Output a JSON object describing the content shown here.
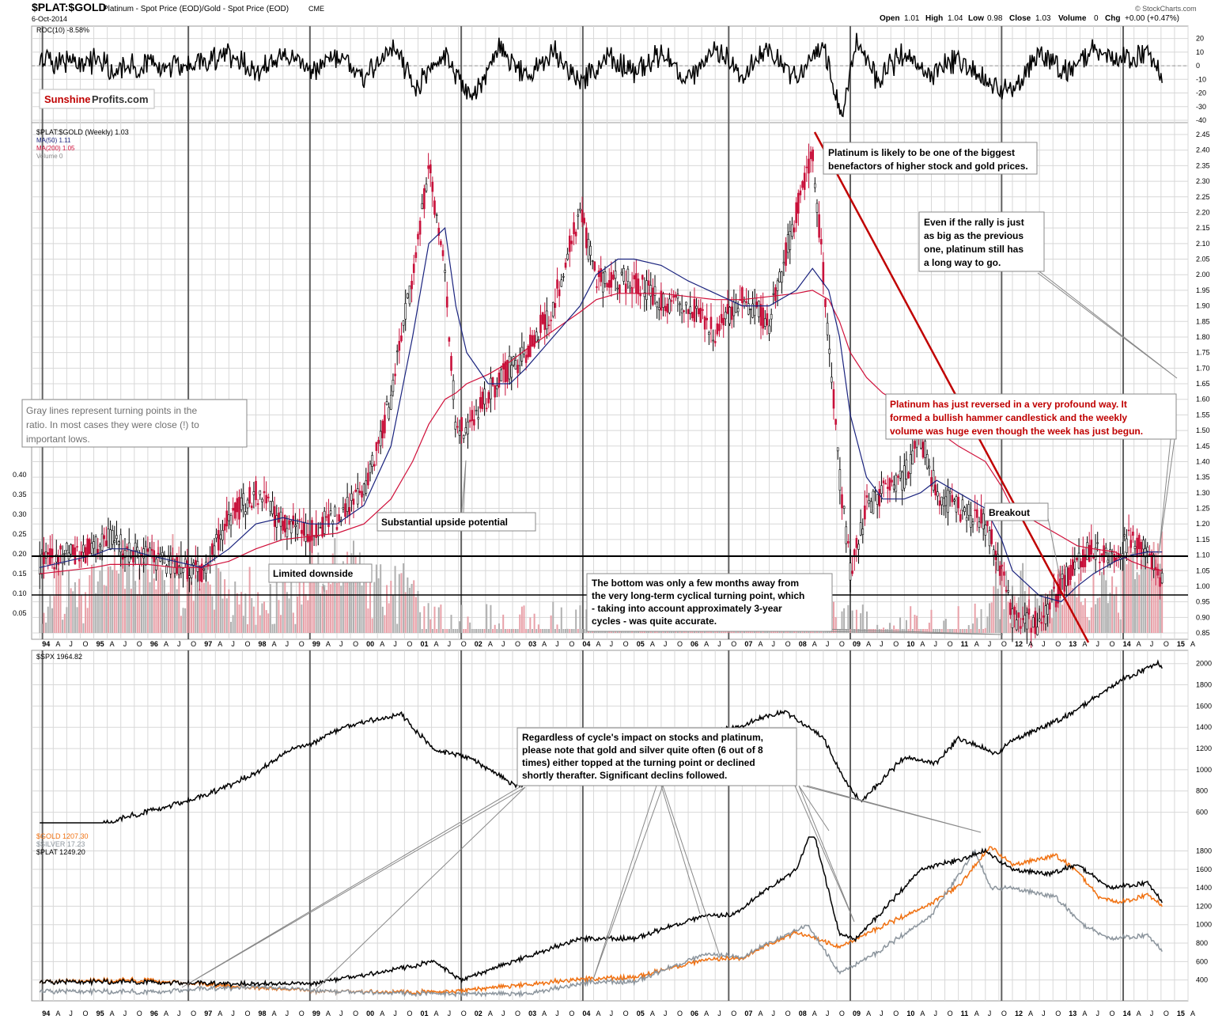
{
  "header": {
    "symbol": "$PLAT:$GOLD",
    "description": "Platinum  - Spot Price (EOD)/Gold - Spot Price (EOD)",
    "exchange": "CME",
    "date": "6-Oct-2014",
    "watermark": "© StockCharts.com",
    "ohlc": {
      "open_label": "Open",
      "open": "1.01",
      "high_label": "High",
      "high": "1.04",
      "low_label": "Low",
      "low": "0.98",
      "close_label": "Close",
      "close": "1.03",
      "volume_label": "Volume",
      "volume": "0",
      "chg_label": "Chg",
      "chg": "+0.00 (+0.47%)"
    }
  },
  "logo": {
    "part1": "Sunshine",
    "part2": "Profits.com"
  },
  "panels": {
    "roc": {
      "legend": "ROC(10) -8.58%"
    },
    "ratio": {
      "legend": "$PLAT:$GOLD (Weekly) 1.03",
      "ma50": "MA(50) 1.11",
      "ma200": "MA(200) 1.05",
      "volume": "Volume 0"
    },
    "spx": {
      "legend": "$SPX 1964.82"
    },
    "metals": {
      "gold": "$GOLD 1207.30",
      "silver": "$SILVER 17.23",
      "plat": "$PLAT 1249.20"
    }
  },
  "annotations": {
    "biggest_benefactors": [
      "Platinum is likely to be one of the biggest",
      "benefactors of higher stock and gold prices."
    ],
    "rally": [
      "Even if the rally is just",
      "as big as the previous",
      "one, platinum still has",
      "a long way to go."
    ],
    "reversed": [
      "Platinum has just reversed in a very profound way. It",
      "formed a bullish hammer candlestick and the weekly",
      "volume was huge even though the week has just begun."
    ],
    "gray_lines": [
      "Gray lines represent turning points in the",
      "ratio. In most cases they were close (!) to",
      "important lows."
    ],
    "substantial": "Substantial upside potential",
    "limited": "Limited downside",
    "breakout": "Breakout",
    "bottom": [
      "The bottom was only a few months away from",
      "the very long-term cyclical turning point, which",
      "- taking into account approximately 3-year",
      "cycles - was quite accurate."
    ],
    "regardless": [
      "Regardless of cycle's impact on stocks and platinum,",
      "please note that gold and silver quite often (6 out of 8",
      "times) either topped at the turning point or declined",
      "shortly therafter. Significant declins followed."
    ]
  },
  "colors": {
    "ma50": "#1a237e",
    "ma200": "#d0103a",
    "gold": "#f07010",
    "silver": "#8c959d",
    "plat": "#000000",
    "grid": "#d8d8d8",
    "turning": "#606060",
    "trend": "#c00000",
    "vol_up": "#b0b0b0",
    "vol_down": "#e8a0a8"
  },
  "x_axis": {
    "labels": [
      "94",
      "A",
      "J",
      "O",
      "95",
      "A",
      "J",
      "O",
      "96",
      "A",
      "J",
      "O",
      "97",
      "A",
      "J",
      "O",
      "98",
      "A",
      "J",
      "O",
      "99",
      "A",
      "J",
      "O",
      "00",
      "A",
      "J",
      "O",
      "01",
      "A",
      "J",
      "O",
      "02",
      "A",
      "J",
      "O",
      "03",
      "A",
      "J",
      "O",
      "04",
      "A",
      "J",
      "O",
      "05",
      "A",
      "J",
      "O",
      "06",
      "A",
      "J",
      "O",
      "07",
      "A",
      "J",
      "O",
      "08",
      "A",
      "J",
      "O",
      "09",
      "A",
      "J",
      "O",
      "10",
      "A",
      "J",
      "O",
      "11",
      "A",
      "J",
      "O",
      "12",
      "A",
      "J",
      "O",
      "13",
      "A",
      "J",
      "O",
      "14",
      "A",
      "J",
      "O",
      "15",
      "A"
    ]
  },
  "chart_data": [
    {
      "type": "line",
      "title": "ROC(10) -8.58%",
      "ylim": [
        -40,
        25
      ],
      "y_ticks": [
        "20",
        "10",
        "0",
        "-10",
        "-20",
        "-30",
        "-40"
      ],
      "x": [
        1994.0,
        1994.5,
        1995.0,
        1995.5,
        1996.0,
        1996.5,
        1997.0,
        1997.5,
        1998.0,
        1998.5,
        1999.0,
        1999.5,
        2000.0,
        2000.5,
        2001.0,
        2001.5,
        2002.0,
        2002.5,
        2003.0,
        2003.5,
        2004.0,
        2004.5,
        2005.0,
        2005.5,
        2006.0,
        2006.5,
        2007.0,
        2007.5,
        2008.0,
        2008.5,
        2008.85,
        2009.1,
        2009.5,
        2010.0,
        2010.5,
        2011.0,
        2011.5,
        2012.0,
        2012.5,
        2013.0,
        2013.5,
        2014.0,
        2014.5,
        2014.77
      ],
      "values": [
        5,
        2,
        3,
        -4,
        2,
        0,
        -1,
        10,
        -5,
        8,
        -3,
        6,
        -10,
        14,
        -15,
        8,
        -25,
        12,
        -8,
        10,
        -12,
        6,
        -4,
        8,
        -10,
        12,
        -6,
        9,
        -8,
        14,
        -38,
        20,
        -10,
        10,
        -8,
        6,
        -12,
        -18,
        10,
        -6,
        12,
        4,
        8,
        -8.58
      ]
    },
    {
      "type": "candlestick",
      "title": "$PLAT:$GOLD (Weekly) 1.03",
      "ylim": [
        0.85,
        2.45
      ],
      "y_ticks": [
        "2.45",
        "2.40",
        "2.35",
        "2.30",
        "2.25",
        "2.20",
        "2.15",
        "2.10",
        "2.05",
        "2.00",
        "1.95",
        "1.90",
        "1.85",
        "1.80",
        "1.75",
        "1.70",
        "1.65",
        "1.60",
        "1.55",
        "1.50",
        "1.45",
        "1.40",
        "1.35",
        "1.30",
        "1.25",
        "1.20",
        "1.15",
        "1.10",
        "1.05",
        "1.00",
        "0.95",
        "0.90",
        "0.85"
      ],
      "volume_ticks": [
        "0.40",
        "0.35",
        "0.30",
        "0.25",
        "0.20",
        "0.15",
        "0.10",
        "0.05"
      ],
      "x": [
        1994.0,
        1994.5,
        1995.0,
        1995.3,
        1995.6,
        1996.0,
        1996.5,
        1997.0,
        1997.5,
        1998.0,
        1998.5,
        1999.0,
        1999.5,
        2000.0,
        2000.5,
        2000.9,
        2001.2,
        2001.5,
        2001.7,
        2001.9,
        2002.3,
        2002.7,
        2003.0,
        2003.5,
        2004.0,
        2004.3,
        2004.7,
        2005.0,
        2005.5,
        2006.0,
        2006.5,
        2007.0,
        2007.5,
        2008.0,
        2008.3,
        2008.6,
        2008.8,
        2009.0,
        2009.3,
        2009.6,
        2010.0,
        2010.3,
        2010.6,
        2011.0,
        2011.5,
        2011.8,
        2012.0,
        2012.5,
        2012.9,
        2013.2,
        2013.5,
        2013.9,
        2014.2,
        2014.5,
        2014.77
      ],
      "values": [
        1.07,
        1.1,
        1.12,
        1.15,
        1.12,
        1.1,
        1.06,
        1.05,
        1.22,
        1.3,
        1.2,
        1.18,
        1.22,
        1.3,
        1.6,
        2.0,
        2.35,
        2.0,
        1.52,
        1.5,
        1.62,
        1.7,
        1.75,
        1.9,
        2.2,
        1.98,
        1.98,
        1.98,
        1.92,
        1.9,
        1.82,
        1.92,
        1.85,
        2.2,
        2.4,
        1.8,
        1.35,
        1.05,
        1.25,
        1.3,
        1.35,
        1.48,
        1.3,
        1.25,
        1.2,
        1.05,
        0.9,
        0.88,
        1.0,
        1.08,
        1.12,
        1.1,
        1.15,
        1.1,
        1.02
      ],
      "ma50": [
        1.06,
        1.08,
        1.1,
        1.12,
        1.12,
        1.1,
        1.08,
        1.06,
        1.12,
        1.2,
        1.22,
        1.2,
        1.2,
        1.26,
        1.45,
        1.8,
        2.1,
        2.15,
        1.9,
        1.75,
        1.65,
        1.65,
        1.7,
        1.8,
        1.9,
        2.0,
        2.05,
        2.05,
        2.03,
        1.98,
        1.94,
        1.9,
        1.9,
        1.95,
        2.02,
        1.95,
        1.8,
        1.55,
        1.35,
        1.28,
        1.28,
        1.3,
        1.34,
        1.3,
        1.25,
        1.15,
        1.05,
        0.97,
        0.95,
        1.0,
        1.04,
        1.08,
        1.1,
        1.11,
        1.11
      ],
      "ma200": [
        1.04,
        1.05,
        1.06,
        1.07,
        1.07,
        1.07,
        1.06,
        1.06,
        1.08,
        1.12,
        1.15,
        1.16,
        1.17,
        1.2,
        1.28,
        1.4,
        1.52,
        1.6,
        1.62,
        1.65,
        1.68,
        1.72,
        1.76,
        1.82,
        1.88,
        1.92,
        1.94,
        1.94,
        1.94,
        1.93,
        1.92,
        1.92,
        1.93,
        1.94,
        1.95,
        1.92,
        1.85,
        1.75,
        1.67,
        1.62,
        1.58,
        1.54,
        1.5,
        1.45,
        1.4,
        1.32,
        1.25,
        1.2,
        1.16,
        1.13,
        1.12,
        1.11,
        1.08,
        1.06,
        1.05
      ]
    },
    {
      "type": "line",
      "title": "$SPX 1964.82",
      "ylim": [
        500,
        2050
      ],
      "y_ticks": [
        "2000",
        "1800",
        "1600",
        "1400",
        "1200",
        "1000",
        "800",
        "600"
      ],
      "x": [
        1994.0,
        1995.0,
        1996.0,
        1997.0,
        1998.0,
        1998.6,
        1999.0,
        1999.5,
        2000.0,
        2000.7,
        2001.3,
        2001.7,
        2002.0,
        2002.8,
        2003.2,
        2004.0,
        2005.0,
        2006.0,
        2007.0,
        2007.8,
        2008.5,
        2008.9,
        2009.2,
        2010.0,
        2010.6,
        2011.0,
        2011.7,
        2012.0,
        2013.0,
        2014.0,
        2014.7,
        2014.77
      ],
      "values": [
        470,
        460,
        610,
        740,
        970,
        1180,
        1240,
        1370,
        1450,
        1520,
        1180,
        1150,
        1100,
        850,
        880,
        1130,
        1190,
        1280,
        1420,
        1550,
        1300,
        900,
        700,
        1120,
        1060,
        1300,
        1150,
        1280,
        1500,
        1840,
        2000,
        1964.82
      ]
    },
    {
      "type": "line",
      "title": "Metals",
      "ylim": [
        200,
        1950
      ],
      "y_ticks": [
        "1800",
        "1600",
        "1400",
        "1200",
        "1000",
        "800",
        "600",
        "400"
      ],
      "series": [
        {
          "name": "$GOLD 1207.30",
          "x": [
            1994.0,
            1996.0,
            1997.0,
            1999.5,
            2001.5,
            2003.0,
            2004.0,
            2005.0,
            2006.3,
            2007.0,
            2008.0,
            2008.8,
            2009.5,
            2010.5,
            2011.0,
            2011.6,
            2012.0,
            2012.8,
            2013.2,
            2013.6,
            2014.0,
            2014.5,
            2014.77
          ],
          "values": [
            380,
            400,
            350,
            270,
            270,
            350,
            410,
            430,
            620,
            640,
            920,
            760,
            960,
            1230,
            1420,
            1850,
            1650,
            1750,
            1580,
            1300,
            1240,
            1320,
            1207.3
          ]
        },
        {
          "name": "$SILVER 17.23",
          "x": [
            1994.0,
            1996.0,
            1998.0,
            1999.5,
            2001.5,
            2003.0,
            2004.2,
            2005.0,
            2006.3,
            2007.0,
            2008.2,
            2008.8,
            2009.5,
            2010.5,
            2011.3,
            2011.6,
            2012.0,
            2012.8,
            2013.3,
            2013.8,
            2014.5,
            2014.77
          ],
          "values": [
            280,
            270,
            330,
            270,
            250,
            250,
            380,
            380,
            680,
            650,
            1000,
            480,
            700,
            1100,
            1800,
            1400,
            1400,
            1300,
            1000,
            850,
            880,
            720
          ]
        },
        {
          "name": "$PLAT 1249.20",
          "x": [
            1994.0,
            1996.0,
            1997.0,
            1999.0,
            2000.0,
            2001.3,
            2001.8,
            2003.0,
            2004.0,
            2005.0,
            2006.3,
            2006.8,
            2008.0,
            2008.3,
            2008.8,
            2009.1,
            2009.6,
            2010.3,
            2011.0,
            2011.5,
            2012.0,
            2012.7,
            2013.2,
            2013.8,
            2014.5,
            2014.77
          ],
          "values": [
            380,
            380,
            360,
            360,
            450,
            600,
            400,
            650,
            850,
            850,
            1100,
            1100,
            1600,
            2050,
            900,
            850,
            1150,
            1600,
            1700,
            1800,
            1600,
            1550,
            1650,
            1400,
            1450,
            1249.2
          ]
        }
      ]
    }
  ]
}
